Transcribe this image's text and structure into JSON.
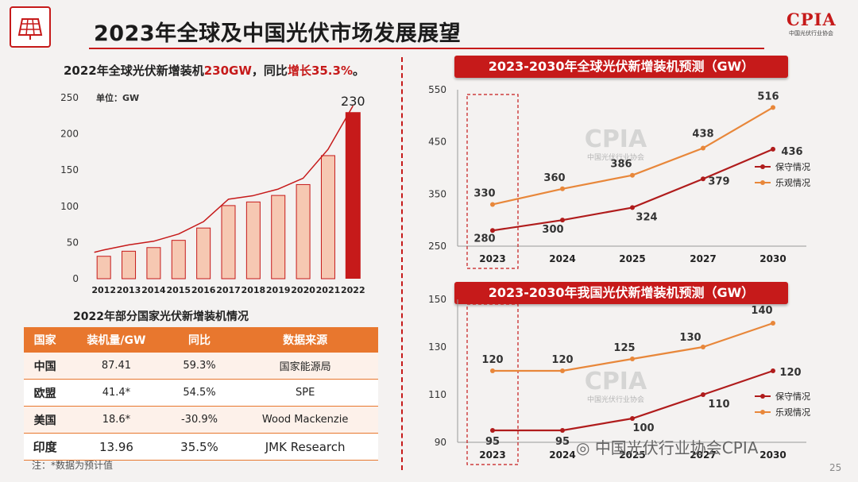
{
  "title": "2023年全球及中国光伏市场发展展望",
  "logo": {
    "text": "CPIA",
    "subtext": "中国光伏行业协会"
  },
  "headline": {
    "prefix": "2022年全球光伏新增装机",
    "value": "230GW",
    "middle": "，同比",
    "growth": "增长35.3%",
    "suffix": "。"
  },
  "watermark": {
    "text": "CPIA",
    "subtext": "中国光伏行业协会"
  },
  "chart_data": [
    {
      "type": "bar",
      "title": "",
      "unit_label": "单位：GW",
      "categories": [
        "2012",
        "2013",
        "2014",
        "2015",
        "2016",
        "2017",
        "2018",
        "2019",
        "2020",
        "2021",
        "2022"
      ],
      "values": [
        31,
        38,
        43,
        53,
        70,
        101,
        106,
        115,
        130,
        170,
        230
      ],
      "ylim": [
        0,
        250
      ],
      "yticks": [
        0,
        50,
        100,
        150,
        200,
        250
      ],
      "highlight_label": "230",
      "colors": {
        "bar": "#f6c8b2",
        "bar_edge": "#c61a1a",
        "highlight": "#c61a1a",
        "curve": "#c61a1a"
      }
    },
    {
      "type": "line",
      "title": "2023-2030年全球光伏新增装机预测（GW）",
      "categories": [
        "2023",
        "2024",
        "2025",
        "2027",
        "2030"
      ],
      "ylim": [
        250,
        550
      ],
      "yticks": [
        250,
        350,
        450,
        550
      ],
      "series": [
        {
          "name": "保守情况",
          "values": [
            280,
            300,
            324,
            379,
            436
          ],
          "color": "#b01c1c"
        },
        {
          "name": "乐观情况",
          "values": [
            330,
            360,
            386,
            438,
            516
          ],
          "color": "#e8873a"
        }
      ]
    },
    {
      "type": "line",
      "title": "2023-2030年我国光伏新增装机预测（GW）",
      "categories": [
        "2023",
        "2024",
        "2025",
        "2027",
        "2030"
      ],
      "ylim": [
        90,
        150
      ],
      "yticks": [
        90,
        110,
        130,
        150
      ],
      "series": [
        {
          "name": "保守情况",
          "values": [
            95,
            95,
            100,
            110,
            120
          ],
          "color": "#b01c1c"
        },
        {
          "name": "乐观情况",
          "values": [
            120,
            120,
            125,
            130,
            140
          ],
          "color": "#e8873a"
        }
      ]
    }
  ],
  "table": {
    "title": "2022年部分国家光伏新增装机情况",
    "headers": [
      "国家",
      "装机量/GW",
      "同比",
      "数据来源"
    ],
    "rows": [
      [
        "中国",
        "87.41",
        "59.3%",
        "国家能源局"
      ],
      [
        "欧盟",
        "41.4*",
        "54.5%",
        "SPE"
      ],
      [
        "美国",
        "18.6*",
        "-30.9%",
        "Wood Mackenzie"
      ],
      [
        "印度",
        "13.96",
        "35.5%",
        "JMK Research"
      ]
    ]
  },
  "footnote": "注：*数据为预计值",
  "wechat": "中国光伏行业协会CPIA",
  "page_number": "25"
}
